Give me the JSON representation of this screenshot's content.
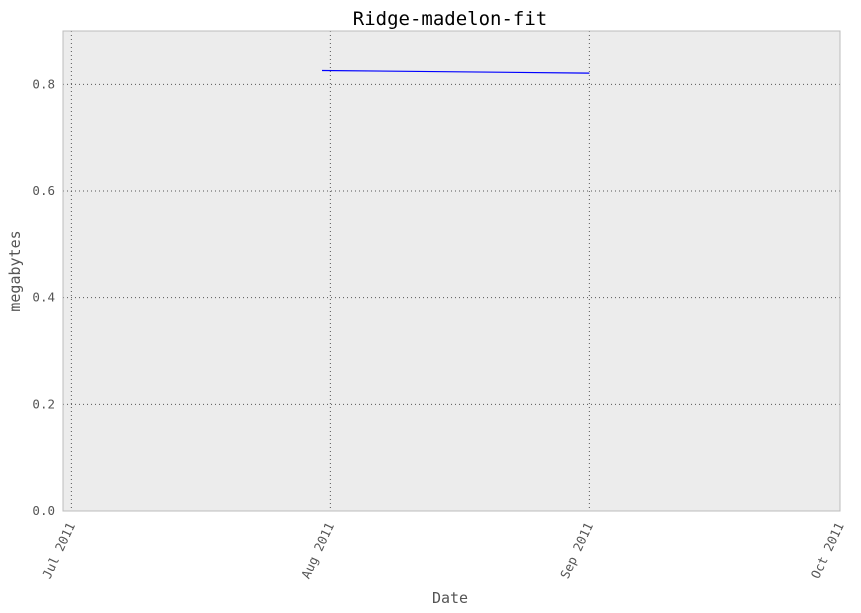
{
  "chart_data": {
    "type": "line",
    "title": "Ridge-madelon-fit",
    "xlabel": "Date",
    "ylabel": "megabytes",
    "x_axis_kind": "date",
    "xlim": [
      "2011-06-30",
      "2011-10-01"
    ],
    "ylim": [
      0.0,
      0.9
    ],
    "x_ticks": [
      {
        "date": "2011-07-01",
        "label": "Jul 2011"
      },
      {
        "date": "2011-08-01",
        "label": "Aug 2011"
      },
      {
        "date": "2011-09-01",
        "label": "Sep 2011"
      },
      {
        "date": "2011-10-01",
        "label": "Oct 2011"
      }
    ],
    "y_ticks": [
      0.0,
      0.2,
      0.4,
      0.6,
      0.8
    ],
    "y_tick_labels": [
      "0.0",
      "0.2",
      "0.4",
      "0.6",
      "0.8"
    ],
    "grid": true,
    "series": [
      {
        "color": "#0000ff",
        "x": [
          "2011-07-31",
          "2011-09-01"
        ],
        "y": [
          0.826,
          0.821
        ]
      }
    ],
    "colors": {
      "plot_background": "#ececec",
      "grid": "#555555",
      "frame": "#bcbcbc"
    }
  }
}
